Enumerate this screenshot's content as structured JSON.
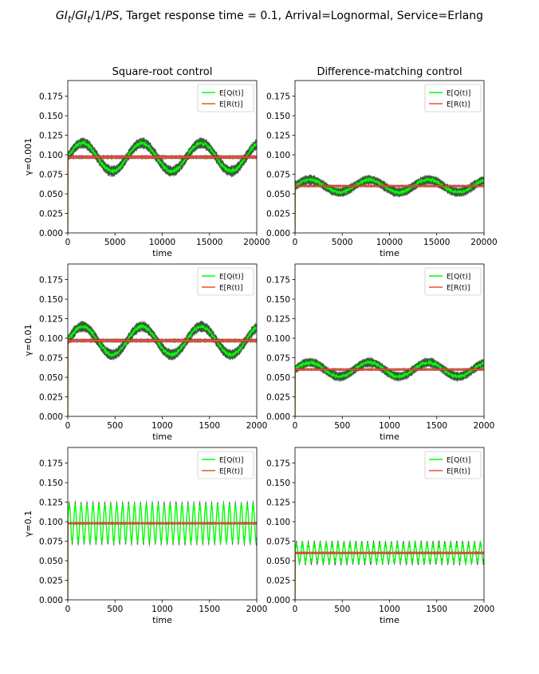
{
  "figure": {
    "title_parts": [
      "GI",
      "t",
      "/",
      "GI",
      "t",
      "/1/",
      "PS",
      ", Target response time = 0.1, Arrival=Lognormal, Service=Erlang"
    ],
    "colors": {
      "eq": "#00ff00",
      "er": "#e8513a",
      "band_eq": "#1c3d1c",
      "band_er": "#8a2a1c"
    }
  },
  "chart_data": [
    {
      "type": "line",
      "row": 0,
      "col": 0,
      "title": "Square-root control",
      "xlabel": "time",
      "ylabel": "γ=0.001",
      "xlim": [
        0,
        20000
      ],
      "ylim": [
        0,
        0.195
      ],
      "xticks": [
        0,
        5000,
        10000,
        15000,
        20000
      ],
      "yticks": [
        0.0,
        0.025,
        0.05,
        0.075,
        0.1,
        0.125,
        0.15,
        0.175
      ],
      "xtick_labels": [
        "0",
        "5000",
        "10000",
        "15000",
        "20000"
      ],
      "ytick_labels": [
        "0.000",
        "0.025",
        "0.050",
        "0.075",
        "0.100",
        "0.125",
        "0.150",
        "0.175"
      ],
      "legend": [
        "E[Q(t)]",
        "E[R(t)]"
      ],
      "legend_loc": "upper right",
      "series": [
        {
          "name": "E[Q(t)]",
          "mean": 0.097,
          "amplitude": 0.018,
          "period": 6283,
          "phase": 0,
          "noise": 0.008
        },
        {
          "name": "E[R(t)]",
          "mean": 0.097,
          "amplitude": 0,
          "period": 6283,
          "phase": 0,
          "noise": 0.003
        }
      ]
    },
    {
      "type": "line",
      "row": 0,
      "col": 1,
      "title": "Difference-matching control",
      "xlabel": "time",
      "ylabel": "",
      "xlim": [
        0,
        20000
      ],
      "ylim": [
        0,
        0.195
      ],
      "xticks": [
        0,
        5000,
        10000,
        15000,
        20000
      ],
      "yticks": [
        0.0,
        0.025,
        0.05,
        0.075,
        0.1,
        0.125,
        0.15,
        0.175
      ],
      "xtick_labels": [
        "0",
        "5000",
        "10000",
        "15000",
        "20000"
      ],
      "ytick_labels": [
        "0.000",
        "0.025",
        "0.050",
        "0.075",
        "0.100",
        "0.125",
        "0.150",
        "0.175"
      ],
      "legend": [
        "E[Q(t)]",
        "E[R(t)]"
      ],
      "legend_loc": "upper right",
      "series": [
        {
          "name": "E[Q(t)]",
          "mean": 0.06,
          "amplitude": 0.008,
          "period": 6283,
          "phase": 0,
          "noise": 0.007
        },
        {
          "name": "E[R(t)]",
          "mean": 0.06,
          "amplitude": 0,
          "period": 6283,
          "phase": 0,
          "noise": 0.002
        }
      ]
    },
    {
      "type": "line",
      "row": 1,
      "col": 0,
      "title": "",
      "xlabel": "time",
      "ylabel": "γ=0.01",
      "xlim": [
        0,
        2000
      ],
      "ylim": [
        0,
        0.195
      ],
      "xticks": [
        0,
        500,
        1000,
        1500,
        2000
      ],
      "yticks": [
        0.0,
        0.025,
        0.05,
        0.075,
        0.1,
        0.125,
        0.15,
        0.175
      ],
      "xtick_labels": [
        "0",
        "500",
        "1000",
        "1500",
        "2000"
      ],
      "ytick_labels": [
        "0.000",
        "0.025",
        "0.050",
        "0.075",
        "0.100",
        "0.125",
        "0.150",
        "0.175"
      ],
      "legend": [
        "E[Q(t)]",
        "E[R(t)]"
      ],
      "legend_loc": "upper right",
      "series": [
        {
          "name": "E[Q(t)]",
          "mean": 0.097,
          "amplitude": 0.018,
          "period": 628,
          "phase": 0,
          "noise": 0.008
        },
        {
          "name": "E[R(t)]",
          "mean": 0.097,
          "amplitude": 0,
          "period": 628,
          "phase": 0,
          "noise": 0.003
        }
      ]
    },
    {
      "type": "line",
      "row": 1,
      "col": 1,
      "title": "",
      "xlabel": "time",
      "ylabel": "",
      "xlim": [
        0,
        2000
      ],
      "ylim": [
        0,
        0.195
      ],
      "xticks": [
        0,
        500,
        1000,
        1500,
        2000
      ],
      "yticks": [
        0.0,
        0.025,
        0.05,
        0.075,
        0.1,
        0.125,
        0.15,
        0.175
      ],
      "xtick_labels": [
        "0",
        "500",
        "1000",
        "1500",
        "2000"
      ],
      "ytick_labels": [
        "0.000",
        "0.025",
        "0.050",
        "0.075",
        "0.100",
        "0.125",
        "0.150",
        "0.175"
      ],
      "legend": [
        "E[Q(t)]",
        "E[R(t)]"
      ],
      "legend_loc": "upper right",
      "series": [
        {
          "name": "E[Q(t)]",
          "mean": 0.06,
          "amplitude": 0.009,
          "period": 628,
          "phase": 0,
          "noise": 0.007
        },
        {
          "name": "E[R(t)]",
          "mean": 0.06,
          "amplitude": 0,
          "period": 628,
          "phase": 0,
          "noise": 0.002
        }
      ]
    },
    {
      "type": "line",
      "row": 2,
      "col": 0,
      "title": "",
      "xlabel": "time",
      "ylabel": "γ=0.1",
      "xlim": [
        0,
        2000
      ],
      "ylim": [
        0,
        0.195
      ],
      "xticks": [
        0,
        500,
        1000,
        1500,
        2000
      ],
      "yticks": [
        0.0,
        0.025,
        0.05,
        0.075,
        0.1,
        0.125,
        0.15,
        0.175
      ],
      "xtick_labels": [
        "0",
        "500",
        "1000",
        "1500",
        "2000"
      ],
      "ytick_labels": [
        "0.000",
        "0.025",
        "0.050",
        "0.075",
        "0.100",
        "0.125",
        "0.150",
        "0.175"
      ],
      "legend": [
        "E[Q(t)]",
        "E[R(t)]"
      ],
      "legend_loc": "upper right",
      "series": [
        {
          "name": "E[Q(t)]",
          "mean": 0.098,
          "amplitude": 0.024,
          "period": 62.8,
          "phase": 0,
          "noise": 0.006
        },
        {
          "name": "E[R(t)]",
          "mean": 0.098,
          "amplitude": 0,
          "period": 62.8,
          "phase": 0,
          "noise": 0.002
        }
      ]
    },
    {
      "type": "line",
      "row": 2,
      "col": 1,
      "title": "",
      "xlabel": "time",
      "ylabel": "",
      "xlim": [
        0,
        2000
      ],
      "ylim": [
        0,
        0.195
      ],
      "xticks": [
        0,
        500,
        1000,
        1500,
        2000
      ],
      "yticks": [
        0.0,
        0.025,
        0.05,
        0.075,
        0.1,
        0.125,
        0.15,
        0.175
      ],
      "xtick_labels": [
        "0",
        "500",
        "1000",
        "1500",
        "2000"
      ],
      "ytick_labels": [
        "0.000",
        "0.025",
        "0.050",
        "0.075",
        "0.100",
        "0.125",
        "0.150",
        "0.175"
      ],
      "legend": [
        "E[Q(t)]",
        "E[R(t)]"
      ],
      "legend_loc": "upper right",
      "series": [
        {
          "name": "E[Q(t)]",
          "mean": 0.06,
          "amplitude": 0.012,
          "period": 62.8,
          "phase": 0,
          "noise": 0.005
        },
        {
          "name": "E[R(t)]",
          "mean": 0.06,
          "amplitude": 0,
          "period": 62.8,
          "phase": 0,
          "noise": 0.002
        }
      ]
    }
  ]
}
